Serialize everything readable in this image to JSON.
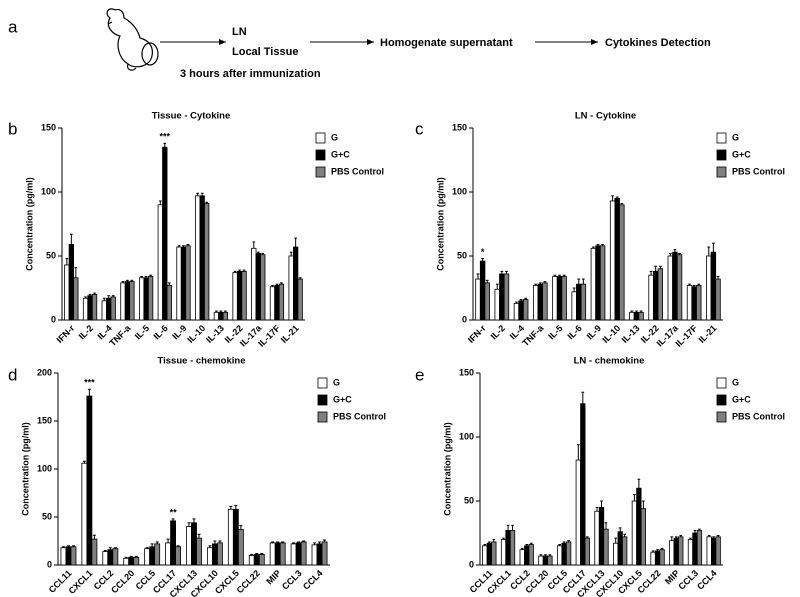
{
  "header": {
    "panel": "a",
    "steps": [
      "LN",
      "Local Tissue",
      "Homogenate supernatant",
      "Cytokines Detection"
    ],
    "note": "3 hours after immunization"
  },
  "chart_data": [
    {
      "type": "bar",
      "panel": "b",
      "title": "Tissue - Cytokine",
      "y_label": "Concentration (pg/ml)",
      "categories": [
        "IFN-r",
        "IL-2",
        "IL-4",
        "TNF-a",
        "IL-5",
        "IL-6",
        "IL-9",
        "IL-10",
        "IL-13",
        "IL-22",
        "IL-17a",
        "IL-17F",
        "IL-21"
      ],
      "series": [
        {
          "name": "G",
          "color": "#ffffff",
          "values": [
            43,
            17,
            15,
            29,
            33,
            90,
            57,
            97,
            6,
            37,
            56,
            26,
            50
          ],
          "errors": [
            5,
            1,
            2,
            1,
            1,
            3,
            1,
            2,
            1,
            1,
            5,
            1,
            3
          ]
        },
        {
          "name": "G+C",
          "color": "#000000",
          "values": [
            59,
            19,
            17,
            30,
            33,
            135,
            57,
            97,
            6,
            38,
            52,
            27,
            57
          ],
          "errors": [
            8,
            1,
            2,
            1,
            1,
            3,
            1,
            2,
            1,
            1,
            1,
            1,
            7
          ]
        },
        {
          "name": "PBS Control",
          "color": "#808080",
          "values": [
            33,
            20,
            18,
            30,
            34,
            27,
            58,
            91,
            6,
            38,
            51,
            28,
            32
          ],
          "errors": [
            8,
            1,
            1,
            1,
            1,
            2,
            1,
            1,
            1,
            1,
            1,
            1,
            1
          ]
        }
      ],
      "ylim": [
        0,
        150
      ],
      "yticks": [
        0,
        50,
        100,
        150
      ],
      "annotations": [
        {
          "text": "***",
          "category": "IL-6"
        }
      ]
    },
    {
      "type": "bar",
      "panel": "c",
      "title": "LN - Cytokine",
      "y_label": "Concentration (pg/ml)",
      "categories": [
        "IFN-r",
        "IL-2",
        "IL-4",
        "TNF-a",
        "IL-5",
        "IL-6",
        "IL-9",
        "IL-10",
        "IL-13",
        "IL-22",
        "IL-17a",
        "IL-17F",
        "IL-21"
      ],
      "series": [
        {
          "name": "G",
          "color": "#ffffff",
          "values": [
            32,
            24,
            13,
            27,
            34,
            22,
            56,
            93,
            6,
            35,
            50,
            27,
            50
          ],
          "errors": [
            4,
            4,
            1,
            1,
            1,
            3,
            1,
            4,
            1,
            3,
            2,
            1,
            7
          ]
        },
        {
          "name": "G+C",
          "color": "#000000",
          "values": [
            46,
            36,
            15,
            28,
            34,
            28,
            58,
            95,
            6,
            38,
            53,
            26,
            53
          ],
          "errors": [
            2,
            2,
            1,
            1,
            1,
            4,
            1,
            1,
            1,
            4,
            2,
            1,
            7
          ]
        },
        {
          "name": "PBS Control",
          "color": "#808080",
          "values": [
            29,
            36,
            16,
            29,
            34,
            28,
            58,
            90,
            6,
            40,
            51,
            27,
            32
          ],
          "errors": [
            2,
            2,
            1,
            1,
            1,
            4,
            1,
            1,
            1,
            2,
            1,
            1,
            2
          ]
        }
      ],
      "ylim": [
        0,
        150
      ],
      "yticks": [
        0,
        50,
        100,
        150
      ],
      "annotations": [
        {
          "text": "*",
          "category": "IFN-r"
        }
      ]
    },
    {
      "type": "bar",
      "panel": "d",
      "title": "Tissue - chemokine",
      "y_label": "Concentration (pg/ml)",
      "categories": [
        "CCL11",
        "CXCL1",
        "CCL2",
        "CCL20",
        "CCL5",
        "CCL17",
        "CXCL13",
        "CXCL10",
        "CXCL5",
        "CCL22",
        "MIP",
        "CCL3",
        "CCL4"
      ],
      "series": [
        {
          "name": "G",
          "color": "#ffffff",
          "values": [
            18,
            106,
            14,
            7,
            17,
            23,
            40,
            18,
            58,
            10,
            23,
            22,
            21
          ],
          "errors": [
            1,
            2,
            1,
            1,
            1,
            4,
            4,
            2,
            3,
            1,
            1,
            1,
            2
          ]
        },
        {
          "name": "G+C",
          "color": "#000000",
          "values": [
            19,
            176,
            16,
            8,
            19,
            46,
            44,
            22,
            58,
            11,
            23,
            23,
            22
          ],
          "errors": [
            1,
            7,
            2,
            1,
            3,
            2,
            4,
            3,
            4,
            1,
            1,
            1,
            2
          ]
        },
        {
          "name": "PBS Control",
          "color": "#808080",
          "values": [
            19,
            27,
            17,
            8,
            22,
            19,
            28,
            23,
            37,
            11,
            23,
            24,
            24
          ],
          "errors": [
            1,
            4,
            1,
            1,
            2,
            1,
            4,
            2,
            4,
            1,
            1,
            1,
            2
          ]
        }
      ],
      "ylim": [
        0,
        200
      ],
      "yticks": [
        0,
        50,
        100,
        150,
        200
      ],
      "annotations": [
        {
          "text": "***",
          "category": "CXCL1"
        },
        {
          "text": "**",
          "category": "CCL17"
        }
      ]
    },
    {
      "type": "bar",
      "panel": "e",
      "title": "LN - chemokine",
      "y_label": "Concentration (pg/ml)",
      "categories": [
        "CCL11",
        "CXCL1",
        "CCL2",
        "CCL20",
        "CCL5",
        "CCL17",
        "CXCL13",
        "CXCL10",
        "CXCL5",
        "CCL22",
        "MIP",
        "CCL3",
        "CCL4"
      ],
      "series": [
        {
          "name": "G",
          "color": "#ffffff",
          "values": [
            15,
            20,
            12,
            7,
            15,
            82,
            42,
            17,
            50,
            10,
            19,
            20,
            22
          ],
          "errors": [
            1,
            1,
            1,
            1,
            1,
            12,
            3,
            4,
            5,
            1,
            3,
            1,
            1
          ]
        },
        {
          "name": "G+C",
          "color": "#000000",
          "values": [
            17,
            27,
            15,
            7,
            17,
            126,
            45,
            26,
            60,
            11,
            21,
            25,
            21
          ],
          "errors": [
            1,
            4,
            1,
            1,
            1,
            9,
            5,
            3,
            7,
            1,
            1,
            2,
            1
          ]
        },
        {
          "name": "PBS Control",
          "color": "#808080",
          "values": [
            18,
            27,
            16,
            7,
            18,
            21,
            28,
            22,
            44,
            12,
            22,
            27,
            22
          ],
          "errors": [
            2,
            4,
            1,
            1,
            1,
            1,
            5,
            2,
            6,
            1,
            1,
            1,
            1
          ]
        }
      ],
      "ylim": [
        0,
        150
      ],
      "yticks": [
        0,
        50,
        100,
        150
      ],
      "annotations": []
    }
  ]
}
